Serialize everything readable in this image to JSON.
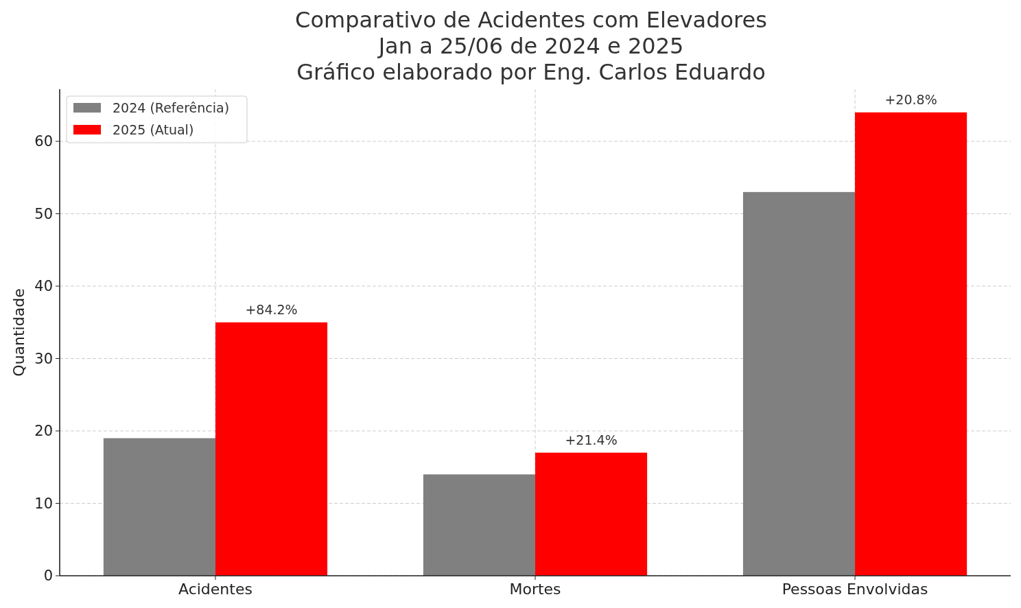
{
  "chart_data": {
    "type": "bar",
    "title": "Comparativo de Acidentes com Elevadores\nJan a 25/06 de 2024 e 2025\nGráfico elaborado por Eng. Carlos Eduardo",
    "ylabel": "Quantidade",
    "categories": [
      "Acidentes",
      "Mortes",
      "Pessoas Envolvidas"
    ],
    "series": [
      {
        "name": "2024 (Referência)",
        "color": "#808080",
        "values": [
          19,
          14,
          53
        ]
      },
      {
        "name": "2025 (Atual)",
        "color": "#ff0000",
        "values": [
          35,
          17,
          64
        ]
      }
    ],
    "annotations": [
      {
        "text": "+84.2%",
        "x": "Acidentes",
        "y": 35
      },
      {
        "text": "+21.4%",
        "x": "Mortes",
        "y": 17
      },
      {
        "text": "+20.8%",
        "x": "Pessoas Envolvidas",
        "y": 64
      }
    ],
    "ylim": [
      0,
      67.2
    ],
    "yticks": [
      0,
      10,
      20,
      30,
      40,
      50,
      60
    ],
    "grid": true,
    "legend": "top left"
  }
}
